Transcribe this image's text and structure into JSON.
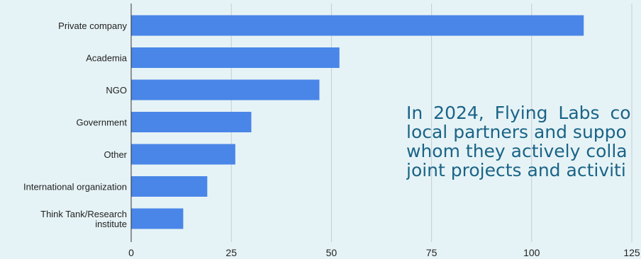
{
  "chart_data": {
    "type": "bar",
    "orientation": "horizontal",
    "categories": [
      "Private company",
      "Academia",
      "NGO",
      "Government",
      "Other",
      "International organization",
      "Think Tank/Research institute"
    ],
    "category_lines": [
      [
        "Private company"
      ],
      [
        "Academia"
      ],
      [
        "NGO"
      ],
      [
        "Government"
      ],
      [
        "Other"
      ],
      [
        "International organization"
      ],
      [
        "Think Tank/Research",
        "institute"
      ]
    ],
    "values": [
      113,
      52,
      47,
      30,
      26,
      19,
      13
    ],
    "xlim": [
      0,
      125
    ],
    "xticks": [
      "0",
      "25",
      "50",
      "75",
      "100",
      "125"
    ],
    "grid": true,
    "bar_color": "#4a86e8"
  },
  "overlay_text": {
    "lines": [
      "In 2024, Flying Labs co",
      "local partners and suppo",
      "whom they actively colla",
      "joint projects and activiti"
    ],
    "color": "#1a6487"
  }
}
